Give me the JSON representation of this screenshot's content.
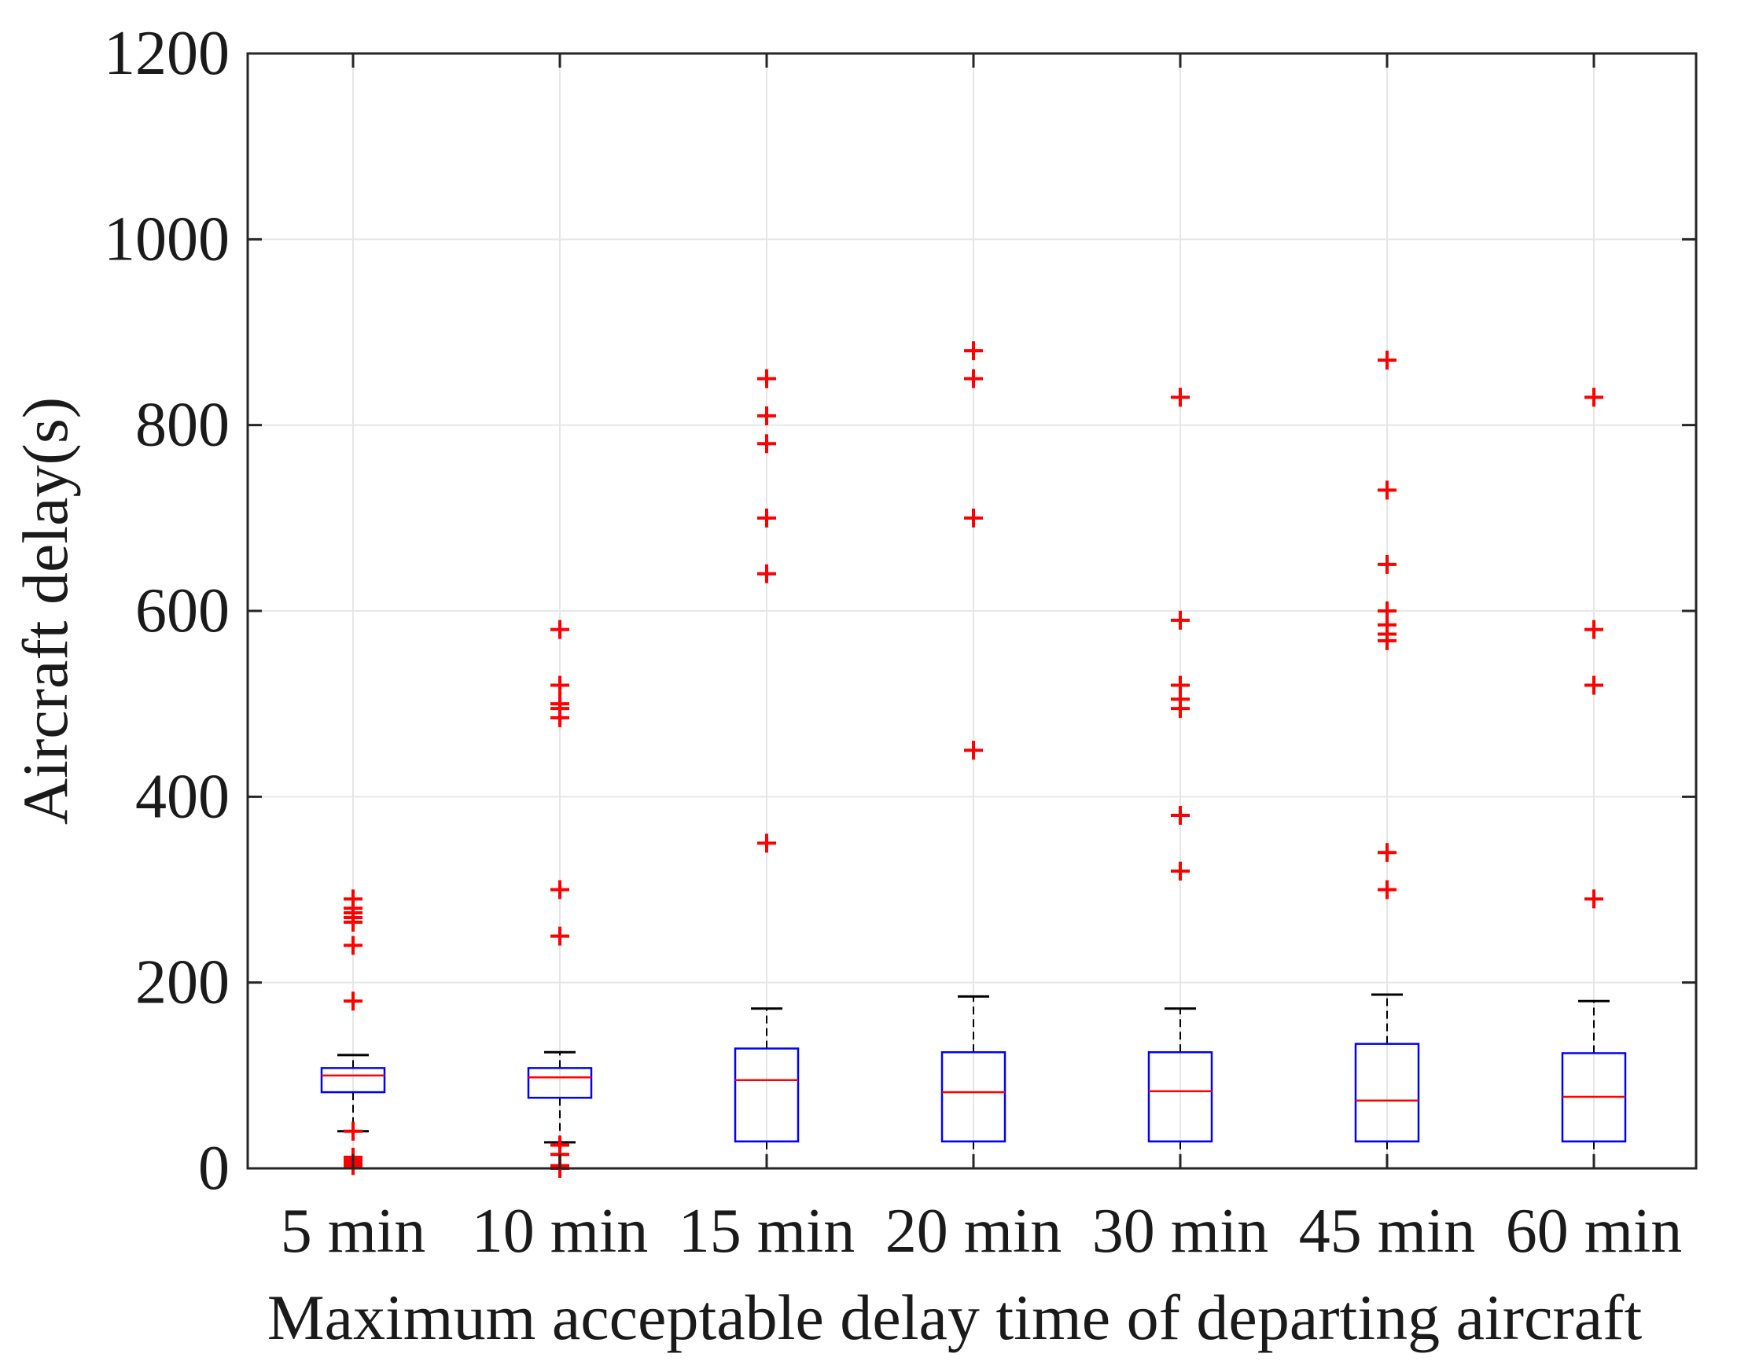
{
  "chart_data": {
    "type": "boxplot",
    "title": "",
    "xlabel": "Maximum acceptable delay time of departing aircraft",
    "ylabel": "Aircraft delay(s)",
    "ylim": [
      0,
      1200
    ],
    "yticks": [
      0,
      200,
      400,
      600,
      800,
      1000,
      1200
    ],
    "grid": true,
    "categories": [
      "5 min",
      "10 min",
      "15 min",
      "20 min",
      "30 min",
      "45 min",
      "60 min"
    ],
    "series": [
      {
        "name": "5 min",
        "q1": 82,
        "median": 100,
        "q3": 108,
        "whisker_low": 40,
        "whisker_high": 122,
        "outliers": [
          290,
          280,
          275,
          270,
          265,
          240,
          180,
          40,
          12,
          10,
          8,
          5,
          3
        ]
      },
      {
        "name": "10 min",
        "q1": 76,
        "median": 98,
        "q3": 108,
        "whisker_low": 28,
        "whisker_high": 125,
        "outliers": [
          580,
          520,
          500,
          495,
          485,
          300,
          250,
          25,
          15,
          3,
          0
        ]
      },
      {
        "name": "15 min",
        "q1": 29,
        "median": 95,
        "q3": 129,
        "whisker_low": 0,
        "whisker_high": 172,
        "outliers": [
          850,
          810,
          780,
          700,
          640,
          350
        ]
      },
      {
        "name": "20 min",
        "q1": 29,
        "median": 82,
        "q3": 125,
        "whisker_low": 0,
        "whisker_high": 185,
        "outliers": [
          880,
          850,
          700,
          450
        ]
      },
      {
        "name": "30 min",
        "q1": 29,
        "median": 83,
        "q3": 125,
        "whisker_low": 0,
        "whisker_high": 172,
        "outliers": [
          830,
          590,
          520,
          505,
          495,
          380,
          320
        ]
      },
      {
        "name": "45 min",
        "q1": 29,
        "median": 73,
        "q3": 134,
        "whisker_low": 0,
        "whisker_high": 187,
        "outliers": [
          870,
          730,
          650,
          600,
          585,
          575,
          568,
          340,
          300
        ]
      },
      {
        "name": "60 min",
        "q1": 29,
        "median": 77,
        "q3": 124,
        "whisker_low": 0,
        "whisker_high": 180,
        "outliers": [
          830,
          580,
          520,
          290
        ]
      }
    ],
    "colors": {
      "box": "#0000ff",
      "median": "#ff0000",
      "outlier": "#ff0000",
      "whisker": "#000000",
      "grid": "#e6e6e6",
      "axes": "#262626"
    }
  }
}
